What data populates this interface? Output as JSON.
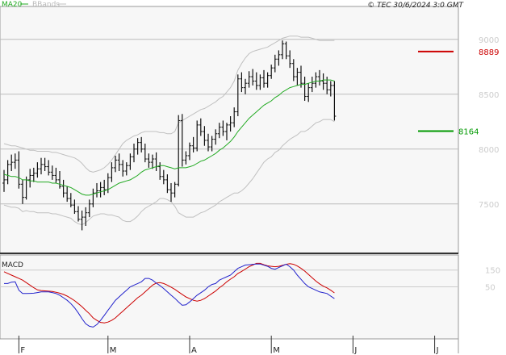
{
  "chart_data": {
    "type": "line",
    "title": "© TEC 30/6/2024 3:0 GMT",
    "legend": [
      {
        "name": "MA20",
        "color": "#22aa22"
      },
      {
        "name": "BBands",
        "color": "#c0c0c0"
      }
    ],
    "price": {
      "ylim": [
        7050,
        9300
      ],
      "yticks": [
        {
          "value": 7500,
          "label": "7500"
        },
        {
          "value": 8000,
          "label": "8000"
        },
        {
          "value": 8500,
          "label": "8500"
        },
        {
          "value": 9000,
          "label": "9000"
        }
      ],
      "ohlc": [
        [
          7690,
          7810,
          7610,
          7720
        ],
        [
          7720,
          7900,
          7680,
          7860
        ],
        [
          7860,
          7950,
          7800,
          7880
        ],
        [
          7880,
          7960,
          7820,
          7900
        ],
        [
          7900,
          7980,
          7640,
          7680
        ],
        [
          7680,
          7720,
          7500,
          7560
        ],
        [
          7560,
          7750,
          7540,
          7720
        ],
        [
          7720,
          7820,
          7650,
          7760
        ],
        [
          7760,
          7830,
          7700,
          7780
        ],
        [
          7780,
          7880,
          7740,
          7820
        ],
        [
          7820,
          7920,
          7770,
          7860
        ],
        [
          7860,
          7920,
          7800,
          7840
        ],
        [
          7840,
          7900,
          7760,
          7790
        ],
        [
          7790,
          7850,
          7720,
          7760
        ],
        [
          7760,
          7830,
          7690,
          7720
        ],
        [
          7720,
          7800,
          7640,
          7660
        ],
        [
          7660,
          7720,
          7560,
          7600
        ],
        [
          7600,
          7660,
          7520,
          7550
        ],
        [
          7550,
          7600,
          7470,
          7490
        ],
        [
          7490,
          7540,
          7410,
          7430
        ],
        [
          7430,
          7480,
          7340,
          7360
        ],
        [
          7360,
          7440,
          7260,
          7380
        ],
        [
          7380,
          7470,
          7300,
          7420
        ],
        [
          7420,
          7540,
          7380,
          7500
        ],
        [
          7500,
          7640,
          7470,
          7600
        ],
        [
          7600,
          7690,
          7560,
          7620
        ],
        [
          7620,
          7700,
          7560,
          7650
        ],
        [
          7650,
          7720,
          7580,
          7630
        ],
        [
          7630,
          7780,
          7600,
          7740
        ],
        [
          7740,
          7880,
          7700,
          7830
        ],
        [
          7830,
          7940,
          7790,
          7900
        ],
        [
          7900,
          7960,
          7800,
          7860
        ],
        [
          7860,
          7900,
          7750,
          7800
        ],
        [
          7800,
          7880,
          7760,
          7850
        ],
        [
          7850,
          7960,
          7810,
          7930
        ],
        [
          7930,
          8050,
          7880,
          8000
        ],
        [
          8000,
          8100,
          7950,
          8060
        ],
        [
          8060,
          8110,
          7970,
          8000
        ],
        [
          8000,
          8050,
          7880,
          7910
        ],
        [
          7910,
          7960,
          7830,
          7880
        ],
        [
          7880,
          7950,
          7820,
          7910
        ],
        [
          7910,
          7970,
          7800,
          7840
        ],
        [
          7840,
          7880,
          7720,
          7750
        ],
        [
          7750,
          7810,
          7680,
          7720
        ],
        [
          7720,
          7770,
          7600,
          7630
        ],
        [
          7630,
          7690,
          7520,
          7600
        ],
        [
          7600,
          7700,
          7560,
          7680
        ],
        [
          7680,
          8310,
          7660,
          8260
        ],
        [
          8260,
          8320,
          7840,
          7900
        ],
        [
          7900,
          7980,
          7860,
          7940
        ],
        [
          7940,
          8060,
          7900,
          8030
        ],
        [
          8030,
          8110,
          7970,
          8010
        ],
        [
          8010,
          8260,
          7980,
          8220
        ],
        [
          8220,
          8280,
          8120,
          8160
        ],
        [
          8160,
          8210,
          8030,
          8080
        ],
        [
          8080,
          8140,
          7980,
          8020
        ],
        [
          8020,
          8120,
          7980,
          8090
        ],
        [
          8090,
          8180,
          8040,
          8140
        ],
        [
          8140,
          8240,
          8100,
          8200
        ],
        [
          8200,
          8260,
          8120,
          8160
        ],
        [
          8160,
          8240,
          8080,
          8220
        ],
        [
          8220,
          8300,
          8160,
          8240
        ],
        [
          8240,
          8380,
          8200,
          8340
        ],
        [
          8340,
          8680,
          8300,
          8640
        ],
        [
          8640,
          8700,
          8520,
          8560
        ],
        [
          8560,
          8640,
          8500,
          8600
        ],
        [
          8600,
          8710,
          8560,
          8660
        ],
        [
          8660,
          8730,
          8580,
          8620
        ],
        [
          8620,
          8700,
          8540,
          8580
        ],
        [
          8580,
          8680,
          8540,
          8650
        ],
        [
          8650,
          8720,
          8560,
          8600
        ],
        [
          8600,
          8700,
          8560,
          8670
        ],
        [
          8670,
          8770,
          8640,
          8740
        ],
        [
          8740,
          8860,
          8700,
          8820
        ],
        [
          8820,
          8900,
          8760,
          8860
        ],
        [
          8860,
          8990,
          8820,
          8960
        ],
        [
          8960,
          8980,
          8820,
          8850
        ],
        [
          8850,
          8900,
          8740,
          8780
        ],
        [
          8780,
          8820,
          8620,
          8660
        ],
        [
          8660,
          8740,
          8580,
          8700
        ],
        [
          8700,
          8760,
          8560,
          8600
        ],
        [
          8600,
          8660,
          8440,
          8480
        ],
        [
          8480,
          8600,
          8430,
          8560
        ],
        [
          8560,
          8660,
          8520,
          8600
        ],
        [
          8600,
          8700,
          8560,
          8660
        ],
        [
          8660,
          8720,
          8580,
          8620
        ],
        [
          8620,
          8690,
          8540,
          8600
        ],
        [
          8600,
          8660,
          8500,
          8540
        ],
        [
          8540,
          8620,
          8480,
          8580
        ],
        [
          8580,
          8620,
          8260,
          8300
        ]
      ],
      "ma20": [
        7770,
        7760,
        7750,
        7750,
        7740,
        7720,
        7720,
        7710,
        7710,
        7700,
        7700,
        7700,
        7700,
        7690,
        7690,
        7680,
        7670,
        7660,
        7650,
        7630,
        7610,
        7590,
        7580,
        7580,
        7590,
        7600,
        7610,
        7620,
        7630,
        7650,
        7670,
        7690,
        7700,
        7710,
        7720,
        7740,
        7760,
        7790,
        7810,
        7820,
        7830,
        7840,
        7850,
        7850,
        7840,
        7830,
        7820,
        7830,
        7830,
        7830,
        7840,
        7850,
        7870,
        7890,
        7900,
        7920,
        7940,
        7960,
        7990,
        8010,
        8040,
        8070,
        8110,
        8160,
        8200,
        8240,
        8280,
        8310,
        8340,
        8370,
        8400,
        8420,
        8440,
        8470,
        8490,
        8520,
        8540,
        8560,
        8570,
        8580,
        8590,
        8590,
        8600,
        8610,
        8620,
        8620,
        8630,
        8630,
        8630,
        8620
      ],
      "bb_upper": [
        8050,
        8040,
        8030,
        8030,
        8020,
        8010,
        8000,
        7990,
        7990,
        7980,
        7980,
        7980,
        7980,
        7970,
        7970,
        7960,
        7950,
        7940,
        7930,
        7920,
        7900,
        7870,
        7830,
        7800,
        7790,
        7800,
        7810,
        7830,
        7860,
        7900,
        7950,
        8000,
        8050,
        8080,
        8100,
        8120,
        8130,
        8150,
        8160,
        8160,
        8160,
        8160,
        8150,
        8150,
        8140,
        8140,
        8160,
        8240,
        8260,
        8280,
        8300,
        8320,
        8340,
        8360,
        8370,
        8390,
        8410,
        8430,
        8460,
        8480,
        8520,
        8560,
        8620,
        8720,
        8780,
        8830,
        8870,
        8890,
        8900,
        8910,
        8920,
        8930,
        8950,
        8970,
        8990,
        9010,
        9020,
        9030,
        9030,
        9030,
        9020,
        9020,
        9020,
        9010,
        9000,
        8990,
        8990,
        8990,
        8990,
        8990
      ],
      "bb_lower": [
        7490,
        7480,
        7470,
        7470,
        7460,
        7430,
        7440,
        7430,
        7430,
        7420,
        7420,
        7420,
        7420,
        7410,
        7410,
        7400,
        7390,
        7380,
        7370,
        7340,
        7320,
        7310,
        7330,
        7360,
        7390,
        7400,
        7410,
        7410,
        7400,
        7400,
        7390,
        7380,
        7350,
        7340,
        7340,
        7360,
        7390,
        7430,
        7460,
        7480,
        7500,
        7520,
        7550,
        7550,
        7540,
        7520,
        7480,
        7420,
        7400,
        7380,
        7380,
        7380,
        7400,
        7420,
        7430,
        7450,
        7470,
        7490,
        7520,
        7540,
        7560,
        7580,
        7600,
        7600,
        7620,
        7650,
        7690,
        7730,
        7780,
        7830,
        7880,
        7910,
        7930,
        7970,
        7990,
        8030,
        8060,
        8090,
        8110,
        8130,
        8160,
        8160,
        8180,
        8210,
        8240,
        8250,
        8270,
        8270,
        8270,
        8250
      ],
      "resistance": {
        "value": 8889,
        "label": "8889",
        "color": "#cc0000"
      },
      "support": {
        "value": 8164,
        "label": "8164",
        "color": "#009900"
      }
    },
    "macd": {
      "label": "MACD",
      "ylim": [
        -260,
        240
      ],
      "yticks": [
        {
          "value": 50,
          "label": "50"
        },
        {
          "value": 150,
          "label": "150"
        }
      ],
      "macd_color": "#2222cc",
      "signal_color": "#cc0000",
      "macd": [
        70,
        70,
        78,
        80,
        30,
        10,
        10,
        11,
        12,
        16,
        20,
        20,
        20,
        16,
        10,
        0,
        -15,
        -30,
        -50,
        -75,
        -105,
        -140,
        -170,
        -185,
        -190,
        -175,
        -150,
        -120,
        -90,
        -60,
        -30,
        -10,
        10,
        30,
        50,
        60,
        70,
        80,
        100,
        100,
        90,
        72,
        58,
        40,
        20,
        0,
        -18,
        -40,
        -60,
        -57,
        -40,
        -20,
        0,
        15,
        30,
        50,
        64,
        70,
        90,
        100,
        110,
        120,
        140,
        160,
        170,
        180,
        182,
        184,
        186,
        186,
        179,
        172,
        160,
        155,
        165,
        175,
        185,
        170,
        150,
        120,
        95,
        70,
        50,
        40,
        30,
        20,
        15,
        10,
        -5,
        -20
      ],
      "signal": [
        140,
        130,
        120,
        110,
        100,
        90,
        75,
        60,
        45,
        32,
        28,
        26,
        24,
        22,
        18,
        12,
        5,
        -5,
        -18,
        -32,
        -50,
        -68,
        -90,
        -110,
        -135,
        -150,
        -162,
        -165,
        -160,
        -150,
        -135,
        -115,
        -95,
        -75,
        -55,
        -35,
        -15,
        0,
        20,
        40,
        60,
        72,
        75,
        70,
        60,
        48,
        35,
        20,
        5,
        -10,
        -20,
        -30,
        -35,
        -30,
        -20,
        -5,
        10,
        25,
        45,
        60,
        80,
        96,
        110,
        130,
        142,
        156,
        170,
        180,
        190,
        190,
        182,
        175,
        172,
        170,
        172,
        178,
        184,
        188,
        184,
        174,
        160,
        144,
        124,
        104,
        84,
        68,
        54,
        44,
        30,
        14
      ],
      "zero_line": "#aaaaaa"
    },
    "x": {
      "tick_labels": [
        {
          "index": 4,
          "label": "F"
        },
        {
          "index": 28,
          "label": "M"
        },
        {
          "index": 50,
          "label": "A"
        },
        {
          "index": 72,
          "label": "M"
        },
        {
          "index": 94,
          "label": "J"
        },
        {
          "index": 116,
          "label": "J"
        }
      ]
    }
  }
}
